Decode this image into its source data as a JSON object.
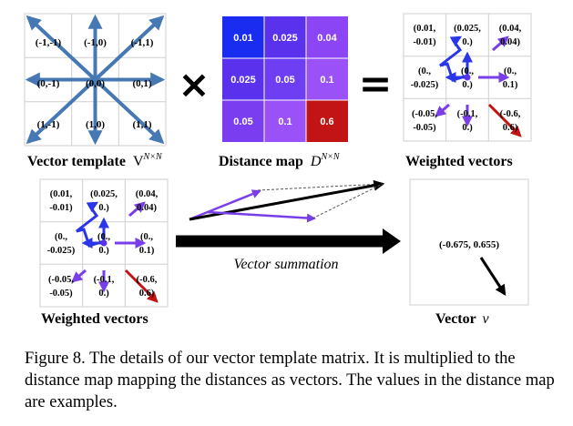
{
  "vector_template": {
    "labels": [
      "(-1,-1)",
      "(-1,0)",
      "(-1,1)",
      "(0,-1)",
      "(0,0)",
      "(0,1)",
      "(1,-1)",
      "(1,0)",
      "(1,1)"
    ]
  },
  "distance_map": {
    "values": [
      "0.01",
      "0.025",
      "0.04",
      "0.025",
      "0.05",
      "0.1",
      "0.05",
      "0.1",
      "0.6"
    ],
    "colors": [
      "#1a2cf0",
      "#5a32ee",
      "#8b45f5",
      "#5a32ee",
      "#6e3ef2",
      "#9a52f8",
      "#7a3ef0",
      "#9a52f8",
      "#c21414"
    ]
  },
  "weighted_vectors": {
    "labels": [
      [
        "(0.01,",
        "-0.01)"
      ],
      [
        "(0.025,",
        "0.)"
      ],
      [
        "(0.04,",
        "0.04)"
      ],
      [
        "(0.,",
        "-0.025)"
      ],
      [
        "(0.,",
        "0.)"
      ],
      [
        "(0.,",
        "0.1)"
      ],
      [
        "(-0.05,",
        "-0.05)"
      ],
      [
        "(-0.1,",
        "0.)"
      ],
      [
        "(-0.6,",
        "0.6)"
      ]
    ]
  },
  "labels": {
    "vector_template": "Vector template",
    "vector_template_symbol": "V",
    "vector_template_sup": "N×N",
    "distance_map": "Distance map",
    "distance_map_symbol": "D",
    "distance_map_sup": "N×N",
    "weighted_vectors_top": "Weighted vectors",
    "weighted_vectors_bottom": "Weighted vectors",
    "vector_summation": "Vector summation",
    "result_vector": "(-0.675, 0.655)",
    "vector_v": "Vector",
    "vector_v_symbol": "v",
    "times": "×",
    "equals": "="
  },
  "caption": "Figure 8. The details of our vector template matrix. It is multiplied to the distance map mapping the distances as vectors. The values in the distance map are examples.",
  "colors": {
    "blue": "#2a36e8",
    "violet": "#7a3ee8",
    "red": "#c21414",
    "steel": "#4678b4"
  }
}
